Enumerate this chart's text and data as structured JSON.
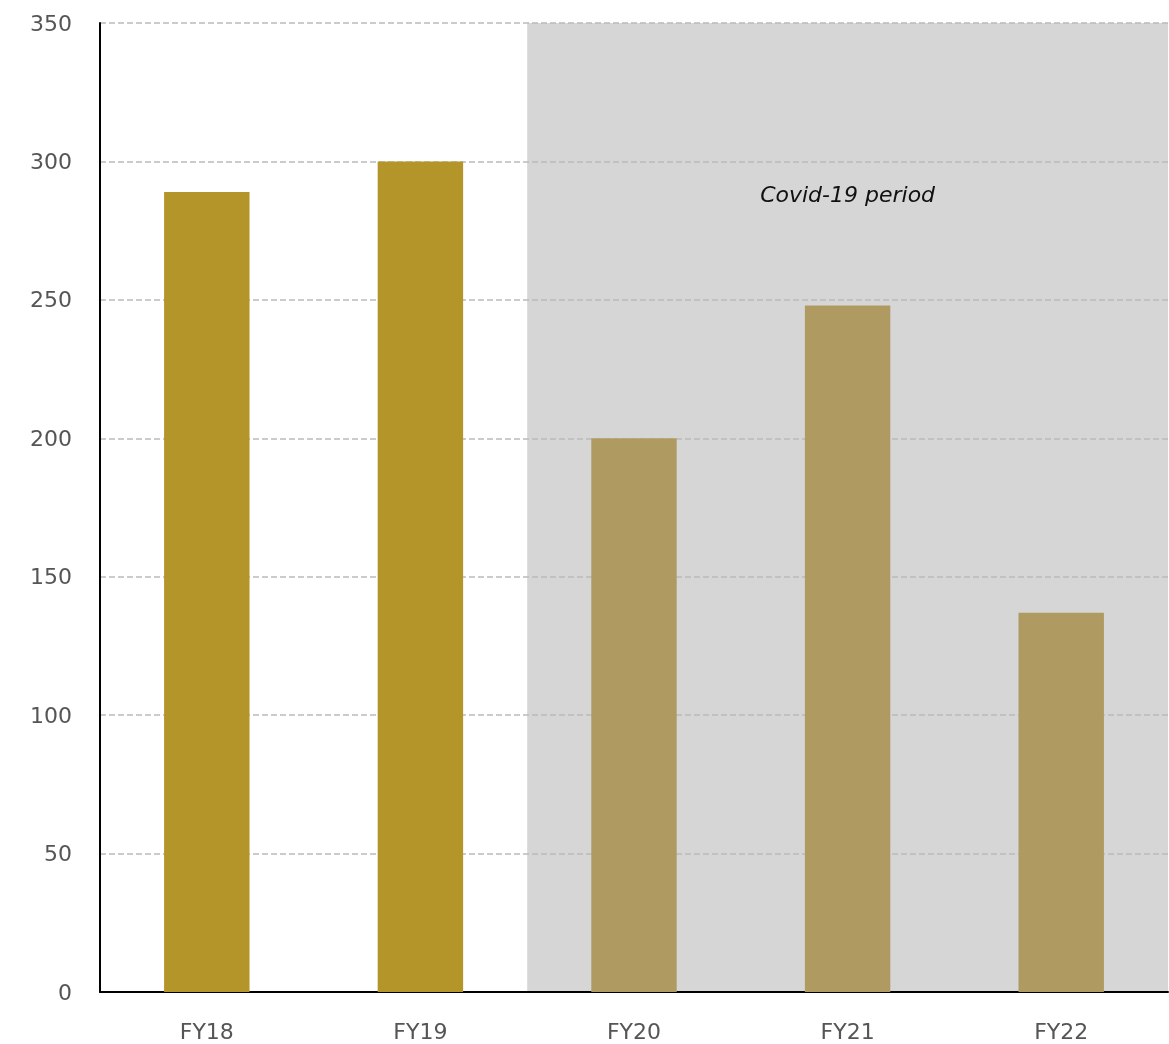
{
  "chart_data": {
    "type": "bar",
    "categories": [
      "FY18",
      "FY19",
      "FY20",
      "FY21",
      "FY22"
    ],
    "values": [
      289,
      300,
      200,
      248,
      137
    ],
    "colors": [
      "#b3952a",
      "#b3952a",
      "#af9b62",
      "#af9b62",
      "#af9b62"
    ],
    "ylim": [
      0,
      350
    ],
    "yticks": [
      0,
      50,
      100,
      150,
      200,
      250,
      300,
      350
    ],
    "grid": "y",
    "bands": [
      {
        "axis": "x",
        "from": "FY20",
        "to": "FY22",
        "label": "Covid-19 period",
        "color": "#d6d6d6"
      }
    ]
  }
}
